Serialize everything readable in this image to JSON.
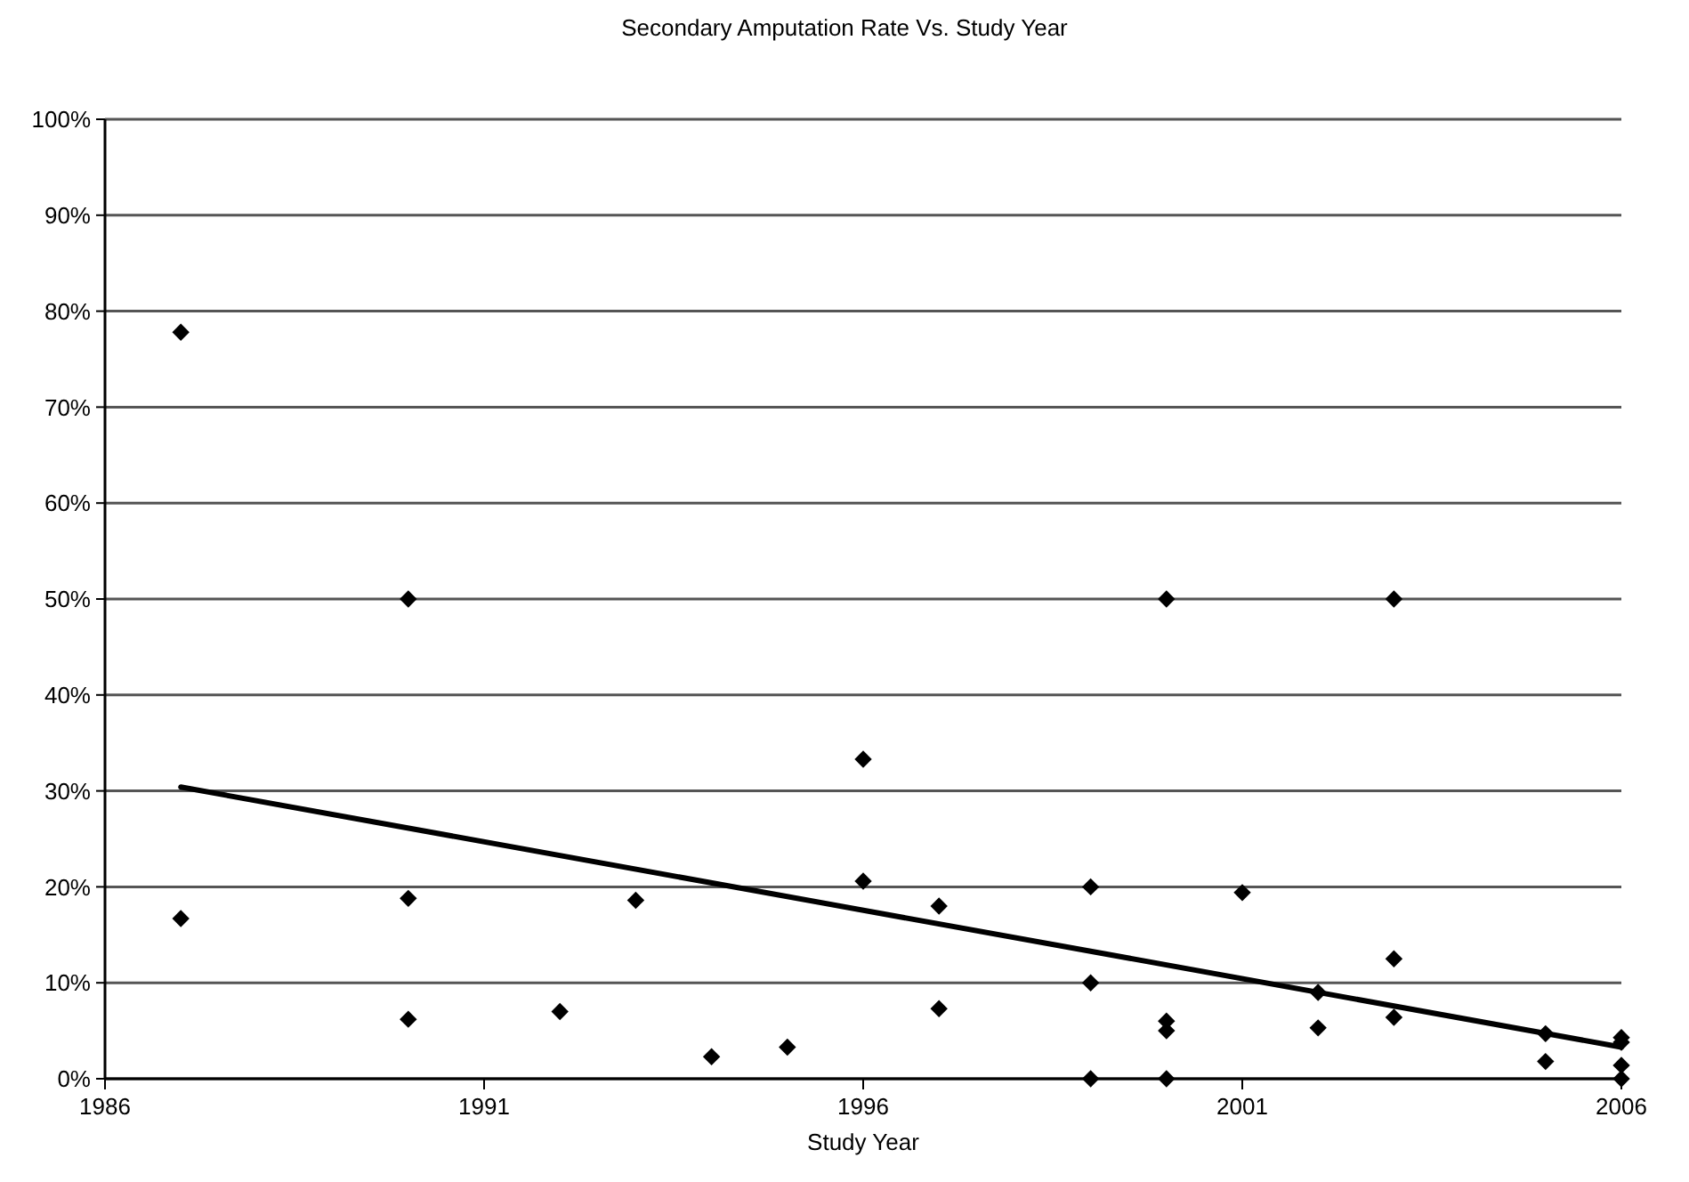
{
  "chart_data": {
    "type": "scatter",
    "title": "Secondary Amputation Rate Vs. Study Year",
    "xlabel": "Study Year",
    "xlim": [
      1986,
      2006
    ],
    "xticks": [
      1986,
      1991,
      1996,
      2001,
      2006
    ],
    "ylim": [
      0,
      100
    ],
    "yticks": [
      {
        "value": 0,
        "label": "0%"
      },
      {
        "value": 10,
        "label": "10%"
      },
      {
        "value": 20,
        "label": "20%"
      },
      {
        "value": 30,
        "label": "30%"
      },
      {
        "value": 40,
        "label": "40%"
      },
      {
        "value": 50,
        "label": "50%"
      },
      {
        "value": 60,
        "label": "60%"
      },
      {
        "value": 70,
        "label": "70%"
      },
      {
        "value": 80,
        "label": "80%"
      },
      {
        "value": 90,
        "label": "90%"
      },
      {
        "value": 100,
        "label": "100%"
      }
    ],
    "grid": "y",
    "marker": "diamond",
    "series": [
      {
        "color": "#000000",
        "x": [
          1987,
          1987,
          1990,
          1990,
          1990,
          1992,
          1993,
          1994,
          1995,
          1996,
          1996,
          1997,
          1997,
          1999,
          1999,
          1999,
          2000,
          2000,
          2000,
          2000,
          2001,
          2002,
          2002,
          2003,
          2003,
          2003,
          2005,
          2005,
          2006,
          2006,
          2006,
          2006
        ],
        "values": [
          77.8,
          16.7,
          50,
          18.8,
          6.2,
          7,
          18.6,
          2.3,
          3.3,
          33.3,
          20.6,
          18,
          7.3,
          20,
          10,
          0,
          50,
          6,
          5,
          0,
          19.4,
          9,
          5.3,
          50,
          12.5,
          6.4,
          4.7,
          1.8,
          4.3,
          3.8,
          1.4,
          0
        ]
      },
      {
        "type": "line",
        "color": "#000000",
        "x": [
          1987,
          2006
        ],
        "values": [
          30.4,
          3.3
        ],
        "marker": "none",
        "line_style": "solid"
      }
    ]
  }
}
